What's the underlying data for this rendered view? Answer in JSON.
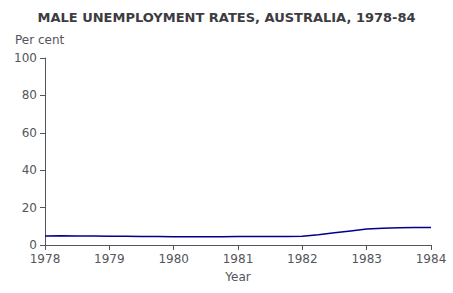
{
  "chart_data": {
    "type": "line",
    "title": "MALE UNEMPLOYMENT RATES, AUSTRALIA, 1978-84",
    "xlabel": "Year",
    "ylabel": "Per cent",
    "x": [
      1978.0,
      1978.25,
      1978.5,
      1978.75,
      1979.0,
      1979.25,
      1979.5,
      1979.75,
      1980.0,
      1980.25,
      1980.5,
      1980.75,
      1981.0,
      1981.25,
      1981.5,
      1981.75,
      1982.0,
      1982.25,
      1982.5,
      1982.75,
      1983.0,
      1983.25,
      1983.5,
      1983.75,
      1984.0
    ],
    "values": [
      4.8,
      4.9,
      4.85,
      4.8,
      4.7,
      4.65,
      4.6,
      4.55,
      4.4,
      4.35,
      4.4,
      4.45,
      4.5,
      4.5,
      4.55,
      4.6,
      4.7,
      5.5,
      6.5,
      7.5,
      8.5,
      9.0,
      9.2,
      9.3,
      9.4
    ],
    "color": "#00008B",
    "xlim": [
      1978,
      1984
    ],
    "ylim": [
      0,
      100
    ],
    "xticks": [
      1978,
      1979,
      1980,
      1981,
      1982,
      1983,
      1984
    ],
    "yticks": [
      0,
      20,
      40,
      60,
      80,
      100
    ],
    "grid": false
  }
}
